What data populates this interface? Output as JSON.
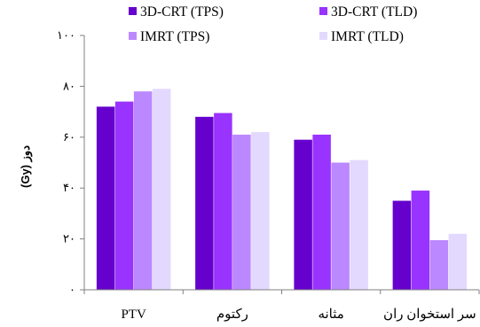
{
  "chart_data": {
    "type": "bar",
    "title": "",
    "xlabel": "",
    "ylabel": "دوز (Gy)",
    "ylim": [
      0,
      100
    ],
    "yticks": [
      0,
      20,
      40,
      60,
      80,
      100
    ],
    "ytick_labels": [
      "۰",
      "۲۰",
      "۴۰",
      "۶۰",
      "۸۰",
      "۱۰۰"
    ],
    "grid": false,
    "legend_position": "top",
    "categories": [
      "PTV",
      "رکتوم",
      "مثانه",
      "سر استخوان ران"
    ],
    "series": [
      {
        "name": "3D-CRT (TPS)",
        "color": "#6600cc",
        "values": [
          72,
          68,
          59,
          35
        ]
      },
      {
        "name": "3D-CRT (TLD)",
        "color": "#9933ff",
        "values": [
          74,
          69.5,
          61,
          39
        ]
      },
      {
        "name": "IMRT (TPS)",
        "color": "#bb88ff",
        "values": [
          78,
          61,
          50,
          19.5
        ]
      },
      {
        "name": "IMRT (TLD)",
        "color": "#e3d9ff",
        "values": [
          79,
          62,
          51,
          22
        ]
      }
    ]
  }
}
